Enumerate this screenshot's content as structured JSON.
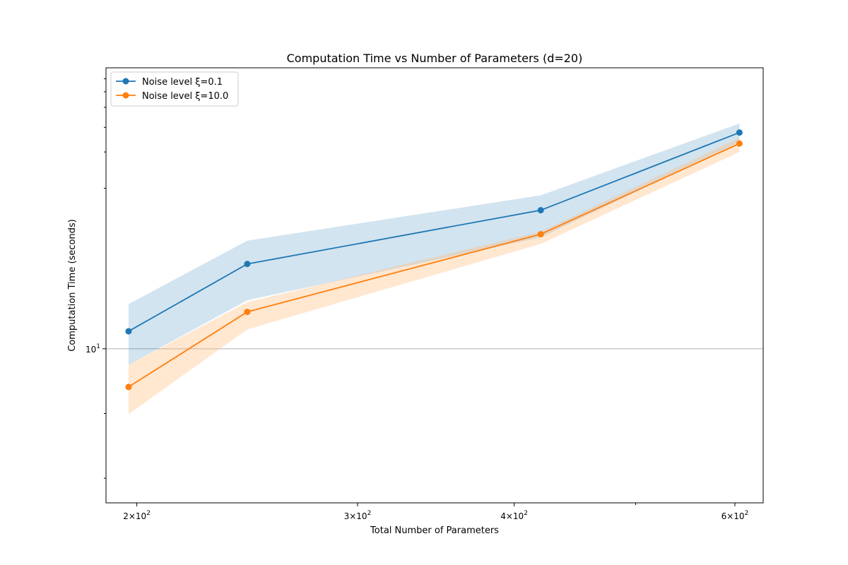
{
  "chart_data": {
    "type": "line",
    "title": "Computation Time vs Number of Parameters (d=20)",
    "xlabel": "Total Number of Parameters",
    "ylabel": "Computation Time (seconds)",
    "xscale": "log",
    "yscale": "log",
    "xlim": [
      189,
      632
    ],
    "ylim": [
      7.62,
      14.34
    ],
    "grid": "horizontal major only",
    "legend_position": "upper-left",
    "x": [
      197,
      245,
      420,
      605
    ],
    "x_tick_labels": [
      {
        "value": 200,
        "base": "2",
        "exp": "2"
      },
      {
        "value": 300,
        "base": "3",
        "exp": "2"
      },
      {
        "value": 400,
        "base": "4",
        "exp": "2"
      },
      {
        "value": 600,
        "base": "6",
        "exp": "2"
      }
    ],
    "x_minor_ticks": [
      500
    ],
    "y_tick_labels": [
      {
        "value": 10,
        "base": "10",
        "exp": "1"
      }
    ],
    "y_minor_ticks": [
      8,
      9
    ],
    "y_minor_ticks_above": [
      20,
      30,
      40,
      50,
      60,
      70
    ],
    "series": [
      {
        "name": "Noise level ξ=0.1",
        "color": "#1f77b4",
        "band_color": "#1f77b4",
        "values": [
          10.27,
          11.31,
          12.14,
          13.34
        ],
        "lower": [
          9.75,
          10.75,
          11.72,
          13.19
        ],
        "upper": [
          10.69,
          11.67,
          12.37,
          13.48
        ]
      },
      {
        "name": "Noise level ξ=10.0",
        "color": "#ff7f0e",
        "band_color": "#ffbb78",
        "values": [
          9.41,
          10.57,
          11.77,
          13.17
        ],
        "lower": [
          8.99,
          10.3,
          11.62,
          13.04
        ],
        "upper": [
          9.75,
          10.72,
          11.81,
          13.26
        ]
      }
    ]
  }
}
